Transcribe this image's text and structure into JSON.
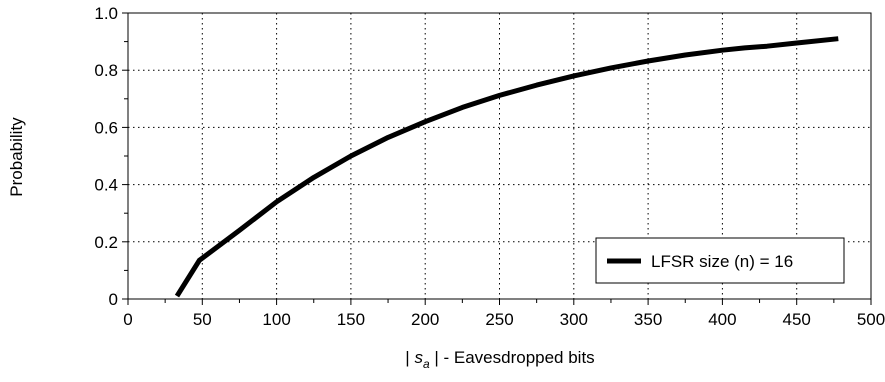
{
  "chart_data": {
    "type": "line",
    "xlabel": {
      "prefix": "| ",
      "symbol": "s",
      "subscript": "a",
      "suffix": " | - Eavesdropped bits"
    },
    "ylabel": "Probability",
    "xlim": [
      0,
      500
    ],
    "ylim": [
      0,
      1.0
    ],
    "xticks": [
      0,
      50,
      100,
      150,
      200,
      250,
      300,
      350,
      400,
      450,
      500
    ],
    "yticks": [
      0,
      0.2,
      0.4,
      0.6,
      0.8,
      1.0
    ],
    "ytick_labels": [
      "0",
      "0.2",
      "0.4",
      "0.6",
      "0.8",
      "1.0"
    ],
    "grid": true,
    "legend_position": "bottom-right",
    "series": [
      {
        "name": "LFSR size (n) = 16",
        "color": "#000000",
        "x": [
          33,
          48,
          75,
          100,
          125,
          150,
          175,
          200,
          225,
          250,
          275,
          300,
          325,
          350,
          375,
          400,
          415,
          430,
          450,
          478
        ],
        "y": [
          0.01,
          0.135,
          0.24,
          0.34,
          0.425,
          0.5,
          0.565,
          0.62,
          0.67,
          0.712,
          0.748,
          0.78,
          0.808,
          0.832,
          0.853,
          0.87,
          0.878,
          0.884,
          0.895,
          0.91
        ]
      }
    ]
  }
}
